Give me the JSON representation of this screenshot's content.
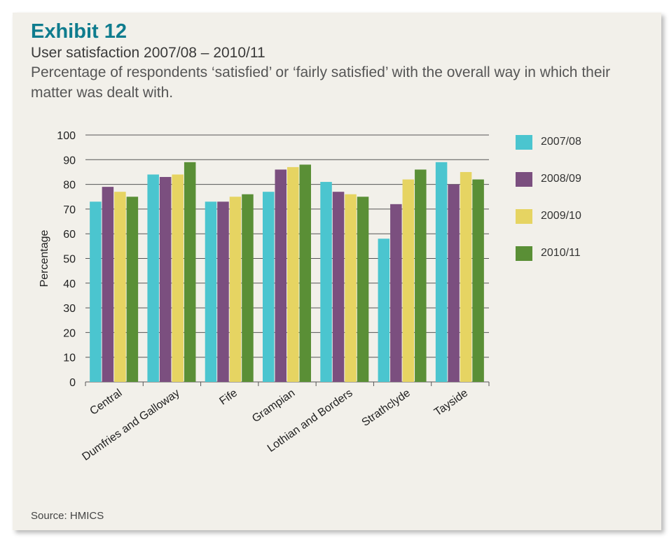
{
  "header": {
    "exhibit": "Exhibit 12",
    "subtitle": "User satisfaction 2007/08 – 2010/11",
    "description": "Percentage of respondents ‘satisfied’ or ‘fairly satisfied’ with the overall way in which their matter was dealt with."
  },
  "footer": {
    "source": "Source: HMICS"
  },
  "colors": {
    "2007/08": "#4bc5cf",
    "2008/09": "#7b4f7f",
    "2009/10": "#e6d462",
    "2010/11": "#5a8f36",
    "grid": "#555555",
    "panel": "#f2f0ea",
    "title": "#0f7c8e"
  },
  "chart_data": {
    "type": "bar",
    "title": "",
    "xlabel": "",
    "ylabel": "Percentage",
    "ylim": [
      0,
      100
    ],
    "yticks": [
      0,
      10,
      20,
      30,
      40,
      50,
      60,
      70,
      80,
      90,
      100
    ],
    "grid": true,
    "legend_position": "right",
    "categories": [
      "Central",
      "Dumfries and Galloway",
      "Fife",
      "Grampian",
      "Lothian and Borders",
      "Strathclyde",
      "Tayside"
    ],
    "series": [
      {
        "name": "2007/08",
        "values": [
          73,
          84,
          73,
          77,
          81,
          58,
          89
        ]
      },
      {
        "name": "2008/09",
        "values": [
          79,
          83,
          73,
          86,
          77,
          72,
          80
        ]
      },
      {
        "name": "2009/10",
        "values": [
          77,
          84,
          75,
          87,
          76,
          82,
          85
        ]
      },
      {
        "name": "2010/11",
        "values": [
          75,
          89,
          76,
          88,
          75,
          86,
          82
        ]
      }
    ]
  }
}
